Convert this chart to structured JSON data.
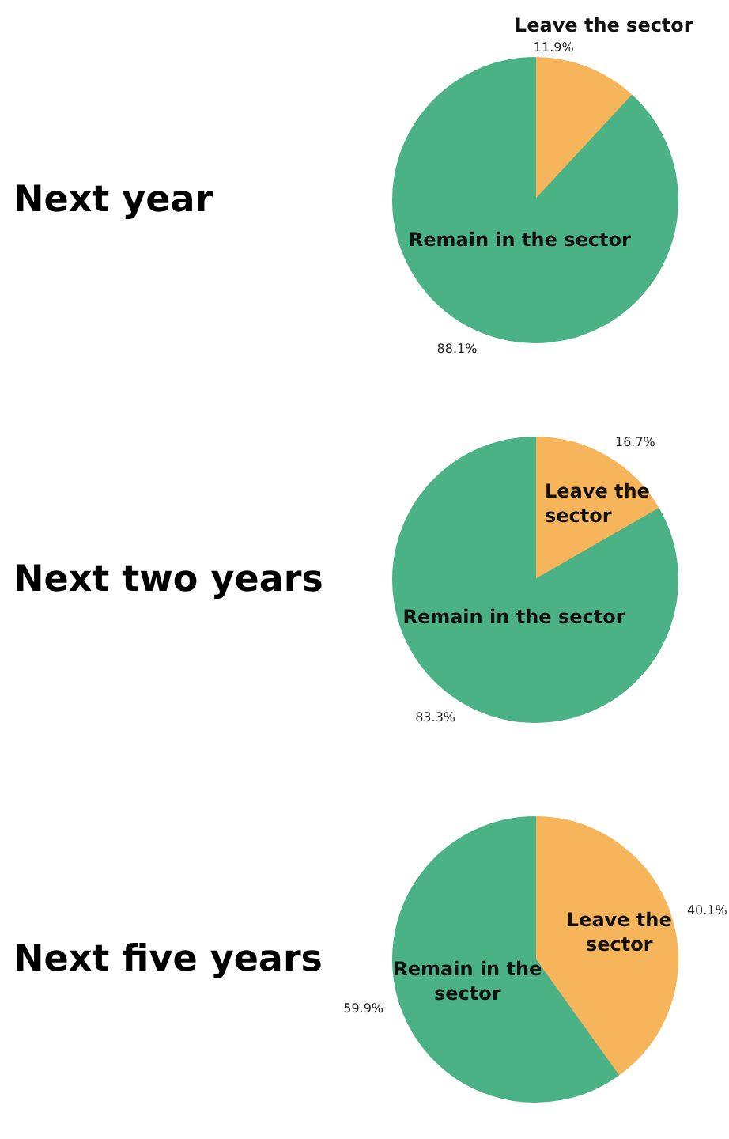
{
  "chart_data": [
    {
      "type": "pie",
      "title": "Next year",
      "categories": [
        "Leave the sector",
        "Remain in the sector"
      ],
      "values": [
        11.9,
        88.1
      ],
      "colors": [
        "#f7b55b",
        "#4bb285"
      ],
      "value_labels": [
        "11.9%",
        "88.1%"
      ]
    },
    {
      "type": "pie",
      "title": "Next two years",
      "categories": [
        "Leave the sector",
        "Remain in the sector"
      ],
      "values": [
        16.7,
        83.3
      ],
      "colors": [
        "#f7b55b",
        "#4bb285"
      ],
      "value_labels": [
        "16.7%",
        "83.3%"
      ]
    },
    {
      "type": "pie",
      "title": "Next five years",
      "categories": [
        "Leave the sector",
        "Remain in the sector"
      ],
      "values": [
        40.1,
        59.9
      ],
      "colors": [
        "#f7b55b",
        "#4bb285"
      ],
      "value_labels": [
        "40.1%",
        "59.9%"
      ]
    }
  ]
}
